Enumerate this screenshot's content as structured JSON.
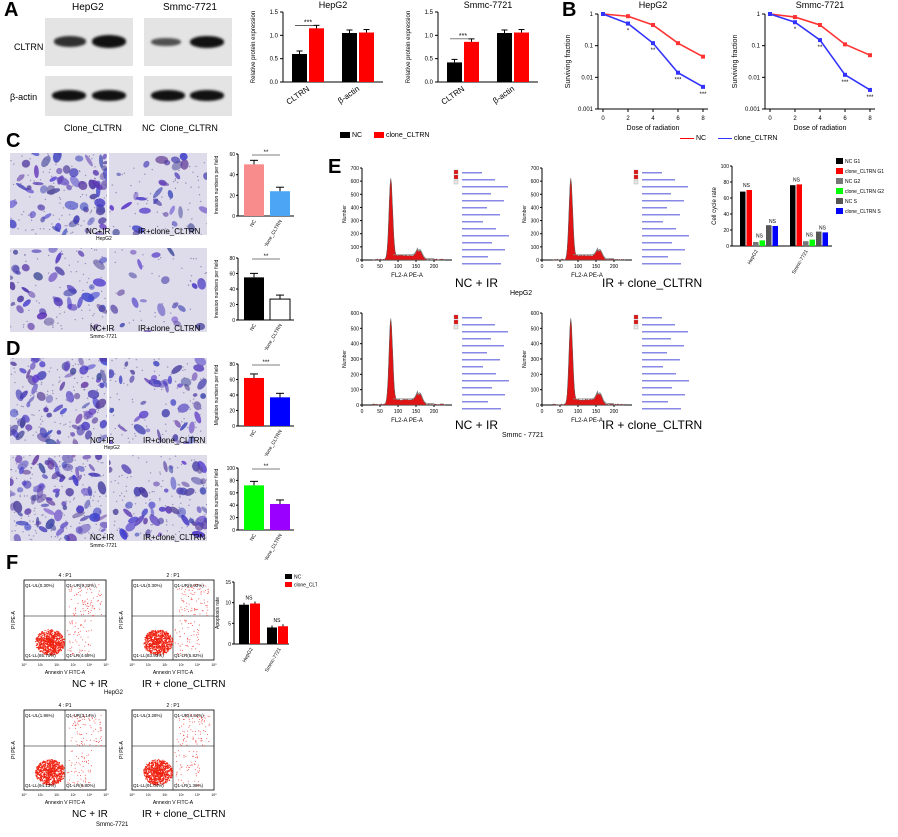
{
  "panels": {
    "A": {
      "label": "A",
      "western": {
        "headers": [
          "HepG2",
          "Smmc-7721"
        ],
        "row_labels": [
          "CLTRN",
          "β-actin"
        ],
        "lane_label_hepg2": "Clone_CLTRN",
        "lane_labels_smmc": [
          "NC",
          "Clone_CLTRN"
        ]
      },
      "legend": [
        "NC",
        "clone_CLTRN"
      ]
    },
    "B": {
      "label": "B",
      "legend": [
        "NC",
        "clone_CLTRN"
      ],
      "xlabel": "Dose of radiation",
      "ylabel": "Surviving fraction"
    },
    "C": {
      "label": "C",
      "hepg2_left": "NC+IR",
      "hepg2_right": "IR+clone_CLTRN",
      "hepg2_cell": "HepG2",
      "smmc_left": "NC+IR",
      "smmc_right": "IR+clone_CLTRN",
      "smmc_cell": "Smmc-7721"
    },
    "D": {
      "label": "D",
      "hepg2_left": "NC+IR",
      "hepg2_right": "IR+clone_CLTRN",
      "hepg2_cell": "HepG2",
      "smmc_left": "NC+IR",
      "smmc_right": "IR+clone_CLTRN",
      "smmc_cell": "Smmc-7721"
    },
    "E": {
      "label": "E",
      "row1_left": "NC + IR",
      "row1_cell": "HepG2",
      "row1_right": "IR + clone_CLTRN",
      "row2_left": "NC + IR",
      "row2_cell": "Smmc - 7721",
      "row2_right": "IR + clone_CLTRN",
      "flow_xlabel": "FL2-A PE-A",
      "flow_ylabel": "Number"
    },
    "F": {
      "label": "F",
      "row1_left": "NC + IR",
      "row1_right": "IR + clone_CLTRN",
      "row1_cell": "HepG2",
      "row2_left": "NC + IR",
      "row2_right": "IR + clone_CLTRN",
      "row2_cell": "Smmc-7721",
      "flow_xlabel": "Annexin V FITC-A",
      "flow_ylabel": "PI PE-A",
      "quadrants": [
        {
          "title": "4 : P1",
          "UL": "Q1-UL(0.30%)",
          "UR": "Q1-UR(9.32%)",
          "LL": "Q1-LL(85.70%)",
          "LR": "Q1-LR(4.68%)"
        },
        {
          "title": "2 : P1",
          "UL": "Q1-UL(0.30%)",
          "UR": "Q1-UR(9.93%)",
          "LL": "Q1-LL(83.93%)",
          "LR": "Q1-LR(5.82%)"
        },
        {
          "title": "4 : P1",
          "UL": "Q1-UL(1.86%)",
          "UR": "Q1-UR(3.14%)",
          "LL": "Q1-LL(94.13%)",
          "LR": "Q1-LR(0.80%)"
        },
        {
          "title": "2 : P1",
          "UL": "Q1-UL(3.28%)",
          "UR": "Q1-UR(4.34%)",
          "LL": "Q1-LL(91.04%)",
          "LR": "Q1-LR(1.36%)"
        }
      ]
    }
  },
  "chart_data": [
    {
      "type": "bar",
      "title": "HepG2",
      "ylabel": "Relative protein expression",
      "categories": [
        "CLTRN",
        "β-actin"
      ],
      "series": [
        {
          "name": "NC",
          "values": [
            0.6,
            1.05
          ]
        },
        {
          "name": "clone_CLTRN",
          "values": [
            1.15,
            1.06
          ]
        }
      ],
      "ylim": [
        0,
        1.5
      ],
      "yticks": [
        "0.0",
        "0.5",
        "1.0",
        "1.5"
      ],
      "annotation": "***"
    },
    {
      "type": "bar",
      "title": "Smmc-7721",
      "ylabel": "Relative protein expression",
      "categories": [
        "CLTRN",
        "β-actin"
      ],
      "series": [
        {
          "name": "NC",
          "values": [
            0.42,
            1.05
          ]
        },
        {
          "name": "clone_CLTRN",
          "values": [
            0.86,
            1.06
          ]
        }
      ],
      "ylim": [
        0,
        1.5
      ],
      "yticks": [
        "0.0",
        "0.5",
        "1.0",
        "1.5"
      ],
      "annotation": "***"
    },
    {
      "type": "line",
      "title": "HepG2",
      "xlabel": "Dose of radiation",
      "ylabel": "Surviving fraction",
      "scale": "log",
      "x": [
        0,
        2,
        4,
        6,
        8
      ],
      "xticks": [
        "0",
        "2",
        "4",
        "6",
        "8"
      ],
      "yticks": [
        "1",
        "0.1",
        "0.01",
        "0.001"
      ],
      "series": [
        {
          "name": "NC",
          "values": [
            1,
            0.85,
            0.45,
            0.12,
            0.045
          ]
        },
        {
          "name": "clone_CLTRN",
          "values": [
            1,
            0.5,
            0.12,
            0.014,
            0.005
          ]
        }
      ]
    },
    {
      "type": "line",
      "title": "Smmc-7721",
      "xlabel": "Dose of radiation",
      "ylabel": "Surviving fraction",
      "scale": "log",
      "x": [
        0,
        2,
        4,
        6,
        8
      ],
      "xticks": [
        "0",
        "2",
        "4",
        "6",
        "8"
      ],
      "yticks": [
        "1",
        "0.1",
        "0.01",
        "0.001"
      ],
      "series": [
        {
          "name": "NC",
          "values": [
            1,
            0.8,
            0.45,
            0.11,
            0.05
          ]
        },
        {
          "name": "clone_CLTRN",
          "values": [
            1,
            0.55,
            0.15,
            0.012,
            0.004
          ]
        }
      ]
    },
    {
      "type": "bar",
      "ylabel": "Invasion numbers per field",
      "categories": [
        "NC",
        "clone_CLTRN"
      ],
      "values": [
        50,
        24
      ],
      "colors": [
        "#f88c8c",
        "#4da6f5"
      ],
      "ylim": [
        0,
        60
      ],
      "yticks": [
        "0",
        "20",
        "40",
        "60"
      ],
      "annotation": "**"
    },
    {
      "type": "bar",
      "ylabel": "Invasion numbers per field",
      "categories": [
        "NC",
        "clone_CLTRN"
      ],
      "values": [
        55,
        27
      ],
      "colors": [
        "#000000",
        "#ffffff"
      ],
      "ylim": [
        0,
        80
      ],
      "yticks": [
        "0",
        "20",
        "40",
        "60",
        "80"
      ],
      "annotation": "**"
    },
    {
      "type": "bar",
      "ylabel": "Migration numbers per field",
      "categories": [
        "NC",
        "clone_CLTRN"
      ],
      "values": [
        62,
        37
      ],
      "colors": [
        "#ff0000",
        "#0000ff"
      ],
      "ylim": [
        0,
        80
      ],
      "yticks": [
        "0",
        "20",
        "40",
        "60",
        "80"
      ],
      "annotation": "***"
    },
    {
      "type": "bar",
      "ylabel": "Migration numbers per field",
      "categories": [
        "NC",
        "clone_CLTRN"
      ],
      "values": [
        72,
        42
      ],
      "colors": [
        "#00ff00",
        "#9900ff"
      ],
      "ylim": [
        0,
        100
      ],
      "yticks": [
        "0",
        "20",
        "40",
        "60",
        "80",
        "100"
      ],
      "annotation": "**"
    },
    {
      "type": "bar",
      "ylabel": "Cell cycle rate",
      "categories": [
        "HepG2",
        "Smmc-7721"
      ],
      "series": [
        {
          "name": "NC G1",
          "values": [
            68,
            76
          ]
        },
        {
          "name": "clone_CLTRN G1",
          "values": [
            70,
            77
          ]
        },
        {
          "name": "NC G2",
          "values": [
            5,
            6
          ]
        },
        {
          "name": "clone_CLTRN G2",
          "values": [
            7,
            8
          ]
        },
        {
          "name": "NC S",
          "values": [
            26,
            18
          ]
        },
        {
          "name": "clone_CLTRN S",
          "values": [
            25,
            17
          ]
        }
      ],
      "ylim": [
        0,
        100
      ],
      "yticks": [
        "0",
        "20",
        "40",
        "60",
        "80",
        "100"
      ],
      "annotation": "NS"
    },
    {
      "type": "bar",
      "ylabel": "Apoptosis rate",
      "categories": [
        "HepG2",
        "Smmc-7721"
      ],
      "series": [
        {
          "name": "NC",
          "values": [
            9.5,
            4
          ]
        },
        {
          "name": "clone_CLTRN",
          "values": [
            9.8,
            4.3
          ]
        }
      ],
      "ylim": [
        0,
        15
      ],
      "yticks": [
        "0",
        "5",
        "10",
        "15"
      ],
      "annotation": "NS"
    }
  ]
}
